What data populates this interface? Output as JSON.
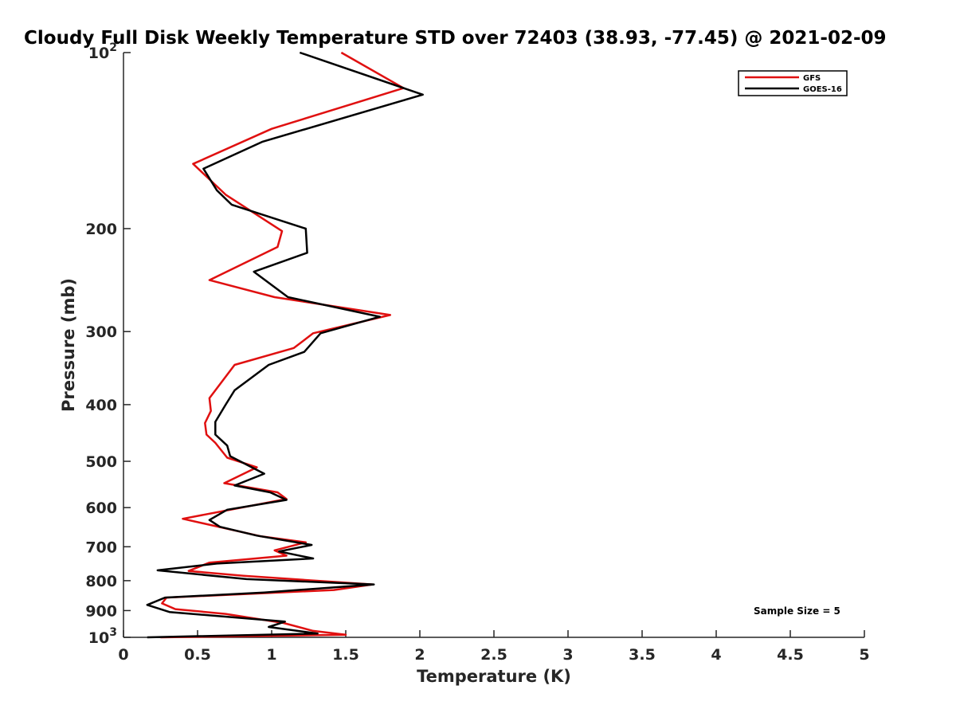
{
  "chart_data": {
    "type": "line",
    "title": "Cloudy Full Disk Weekly Temperature STD over 72403 (38.93, -77.45) @ 2021-02-09",
    "xlabel": "Temperature (K)",
    "ylabel": "Pressure (mb)",
    "xlim": [
      0,
      5
    ],
    "ylim": [
      100,
      1000
    ],
    "y_scale": "log",
    "y_reversed": true,
    "grid": false,
    "legend_position": "top-right",
    "x_ticks": [
      0,
      0.5,
      1,
      1.5,
      2,
      2.5,
      3,
      3.5,
      4,
      4.5,
      5
    ],
    "x_tick_labels": [
      "0",
      "0.5",
      "1",
      "1.5",
      "2",
      "2.5",
      "3",
      "3.5",
      "4",
      "4.5",
      "5"
    ],
    "y_ticks": [
      100,
      200,
      300,
      400,
      500,
      600,
      700,
      800,
      900,
      1000
    ],
    "y_tick_labels": [
      {
        "base": "10",
        "exp": "2"
      },
      {
        "base": "200",
        "exp": ""
      },
      {
        "base": "300",
        "exp": ""
      },
      {
        "base": "400",
        "exp": ""
      },
      {
        "base": "500",
        "exp": ""
      },
      {
        "base": "600",
        "exp": ""
      },
      {
        "base": "700",
        "exp": ""
      },
      {
        "base": "800",
        "exp": ""
      },
      {
        "base": "900",
        "exp": ""
      },
      {
        "base": "10",
        "exp": "3"
      }
    ],
    "series": [
      {
        "name": "GFS",
        "color": "#e01010",
        "points": [
          [
            1.47,
            100
          ],
          [
            1.89,
            115
          ],
          [
            1.0,
            135
          ],
          [
            0.47,
            155
          ],
          [
            0.69,
            175
          ],
          [
            1.07,
            202
          ],
          [
            1.04,
            215
          ],
          [
            0.58,
            245
          ],
          [
            1.02,
            262
          ],
          [
            1.8,
            281
          ],
          [
            1.28,
            302
          ],
          [
            1.15,
            320
          ],
          [
            0.75,
            342
          ],
          [
            0.58,
            390
          ],
          [
            0.59,
            410
          ],
          [
            0.55,
            430
          ],
          [
            0.56,
            450
          ],
          [
            0.62,
            465
          ],
          [
            0.7,
            493
          ],
          [
            0.9,
            512
          ],
          [
            0.68,
            545
          ],
          [
            1.04,
            565
          ],
          [
            1.1,
            580
          ],
          [
            0.4,
            627
          ],
          [
            0.93,
            672
          ],
          [
            1.23,
            688
          ],
          [
            1.02,
            710
          ],
          [
            1.1,
            725
          ],
          [
            0.58,
            745
          ],
          [
            0.44,
            770
          ],
          [
            0.81,
            785
          ],
          [
            1.68,
            812
          ],
          [
            1.42,
            830
          ],
          [
            0.29,
            855
          ],
          [
            0.26,
            875
          ],
          [
            0.35,
            895
          ],
          [
            0.69,
            912
          ],
          [
            1.08,
            945
          ],
          [
            1.28,
            975
          ],
          [
            1.5,
            990
          ],
          [
            0.25,
            1000
          ]
        ]
      },
      {
        "name": "GOES-16",
        "color": "#000000",
        "points": [
          [
            1.19,
            100
          ],
          [
            2.02,
            118
          ],
          [
            0.94,
            142
          ],
          [
            0.54,
            158
          ],
          [
            0.63,
            172
          ],
          [
            0.73,
            182
          ],
          [
            1.23,
            200
          ],
          [
            1.24,
            220
          ],
          [
            0.88,
            237
          ],
          [
            1.11,
            262
          ],
          [
            1.73,
            283
          ],
          [
            1.33,
            302
          ],
          [
            1.22,
            325
          ],
          [
            0.98,
            342
          ],
          [
            0.75,
            378
          ],
          [
            0.69,
            400
          ],
          [
            0.62,
            428
          ],
          [
            0.62,
            450
          ],
          [
            0.7,
            470
          ],
          [
            0.72,
            490
          ],
          [
            0.95,
            525
          ],
          [
            0.75,
            550
          ],
          [
            0.99,
            565
          ],
          [
            1.1,
            582
          ],
          [
            0.7,
            605
          ],
          [
            0.58,
            630
          ],
          [
            0.65,
            647
          ],
          [
            0.9,
            670
          ],
          [
            1.27,
            695
          ],
          [
            1.05,
            713
          ],
          [
            1.28,
            733
          ],
          [
            0.63,
            748
          ],
          [
            0.23,
            768
          ],
          [
            0.83,
            795
          ],
          [
            1.69,
            812
          ],
          [
            0.95,
            838
          ],
          [
            0.28,
            855
          ],
          [
            0.16,
            880
          ],
          [
            0.31,
            905
          ],
          [
            1.09,
            940
          ],
          [
            0.98,
            960
          ],
          [
            1.31,
            985
          ],
          [
            0.16,
            1000
          ]
        ]
      }
    ],
    "annotation": "Sample Size = 5"
  }
}
